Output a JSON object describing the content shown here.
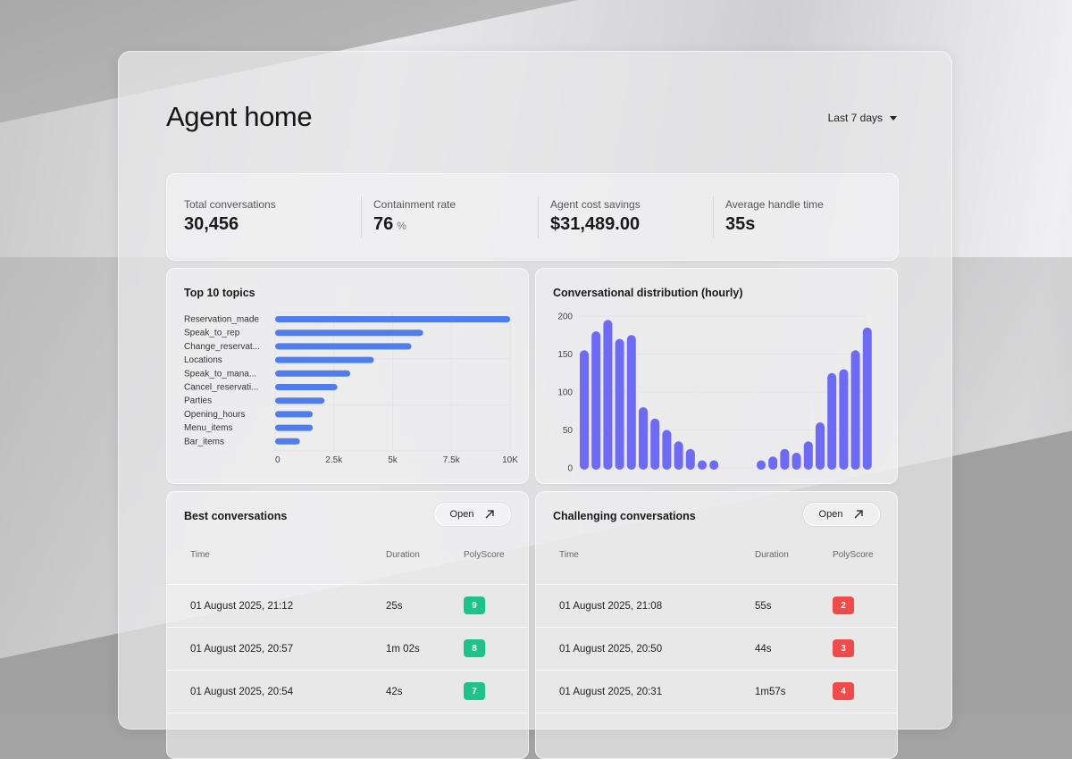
{
  "header": {
    "title": "Agent home",
    "range_label": "Last 7 days"
  },
  "stats": [
    {
      "label": "Total conversations",
      "value": "30,456",
      "unit": ""
    },
    {
      "label": "Containment rate",
      "value": "76",
      "unit": "%"
    },
    {
      "label": "Agent cost savings",
      "value": "$31,489.00",
      "unit": ""
    },
    {
      "label": "Average handle time",
      "value": "35s",
      "unit": ""
    }
  ],
  "topics": {
    "title": "Top 10 topics",
    "chart_data": {
      "type": "bar",
      "orientation": "horizontal",
      "categories": [
        "Reservation_made",
        "Speak_to_rep",
        "Change_reservat...",
        "Locations",
        "Speak_to_mana...",
        "Cancel_reservati...",
        "Parties",
        "Opening_hours",
        "Menu_items",
        "Bar_items"
      ],
      "values": [
        10000,
        6300,
        5800,
        4200,
        3200,
        2650,
        2100,
        1600,
        1600,
        1050
      ],
      "xlim": [
        0,
        10000
      ],
      "xticks": [
        "0",
        "2.5k",
        "5k",
        "7.5k",
        "10K"
      ],
      "color": "#4f7ded",
      "grid": true
    }
  },
  "distribution": {
    "title": "Conversational distribution (hourly)",
    "chart_data": {
      "type": "bar",
      "values": [
        155,
        180,
        195,
        170,
        175,
        80,
        65,
        50,
        35,
        25,
        10,
        10,
        0,
        0,
        0,
        10,
        15,
        25,
        20,
        35,
        60,
        125,
        130,
        155,
        185
      ],
      "ylim": [
        0,
        200
      ],
      "yticks": [
        "0",
        "50",
        "100",
        "150",
        "200"
      ],
      "color": "#6e6af8",
      "grid": true
    }
  },
  "best": {
    "title": "Best conversations",
    "open_label": "Open",
    "columns": [
      "Time",
      "Duration",
      "PolyScore"
    ],
    "rows": [
      {
        "time": "01 August 2025, 21:12",
        "duration": "25s",
        "score": "9"
      },
      {
        "time": "01 August 2025, 20:57",
        "duration": "1m 02s",
        "score": "8"
      },
      {
        "time": "01 August 2025, 20:54",
        "duration": "42s",
        "score": "7"
      }
    ],
    "badge_color": "#1dc48a"
  },
  "challenging": {
    "title": "Challenging conversations",
    "open_label": "Open",
    "columns": [
      "Time",
      "Duration",
      "PolyScore"
    ],
    "rows": [
      {
        "time": "01 August 2025, 21:08",
        "duration": "55s",
        "score": "2"
      },
      {
        "time": "01 August 2025, 20:50",
        "duration": "44s",
        "score": "3"
      },
      {
        "time": "01 August 2025, 20:31",
        "duration": "1m57s",
        "score": "4"
      }
    ],
    "badge_color": "#f04a4a"
  }
}
